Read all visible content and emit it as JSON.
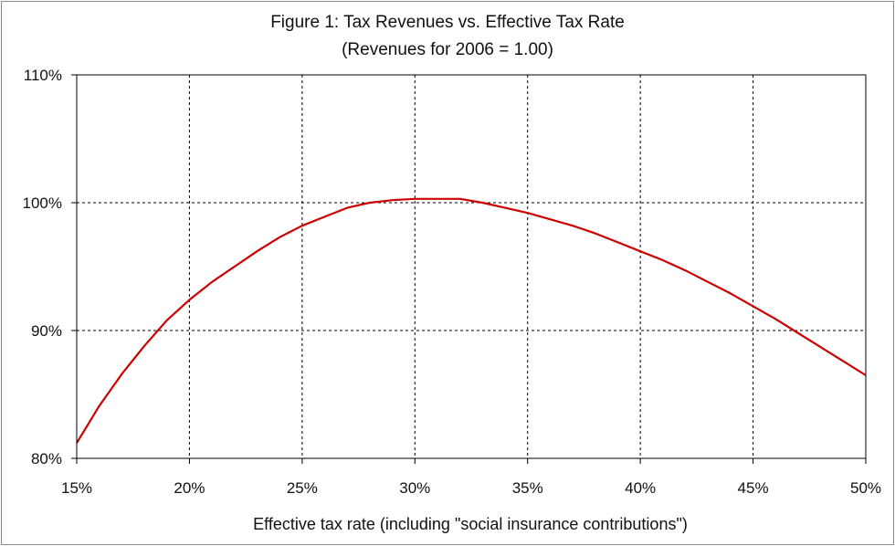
{
  "chart_data": {
    "type": "line",
    "title": "Figure 1: Tax Revenues vs. Effective Tax Rate",
    "subtitle": "(Revenues for 2006 = 1.00)",
    "xlabel": "Effective tax rate (including \"social insurance contributions\")",
    "ylabel": "",
    "xlim": [
      15,
      50
    ],
    "ylim": [
      80,
      110
    ],
    "x_ticks": [
      "15%",
      "20%",
      "25%",
      "30%",
      "35%",
      "40%",
      "45%",
      "50%"
    ],
    "y_ticks": [
      "80%",
      "90%",
      "100%",
      "110%"
    ],
    "grid": true,
    "series": [
      {
        "color": "#cc0000",
        "x": [
          15,
          16,
          17,
          18,
          19,
          20,
          21,
          22,
          23,
          24,
          25,
          26,
          27,
          28,
          29,
          30,
          31,
          32,
          33,
          34,
          35,
          36,
          37,
          38,
          39,
          40,
          41,
          42,
          43,
          44,
          45,
          46,
          47,
          48,
          49,
          50
        ],
        "y": [
          81.2,
          84.1,
          86.6,
          88.8,
          90.8,
          92.4,
          93.8,
          95.0,
          96.2,
          97.3,
          98.2,
          98.9,
          99.6,
          100.0,
          100.2,
          100.3,
          100.3,
          100.3,
          100.0,
          99.6,
          99.2,
          98.7,
          98.2,
          97.6,
          96.9,
          96.2,
          95.5,
          94.7,
          93.8,
          92.9,
          91.9,
          90.9,
          89.8,
          88.7,
          87.6,
          86.5
        ]
      }
    ]
  }
}
